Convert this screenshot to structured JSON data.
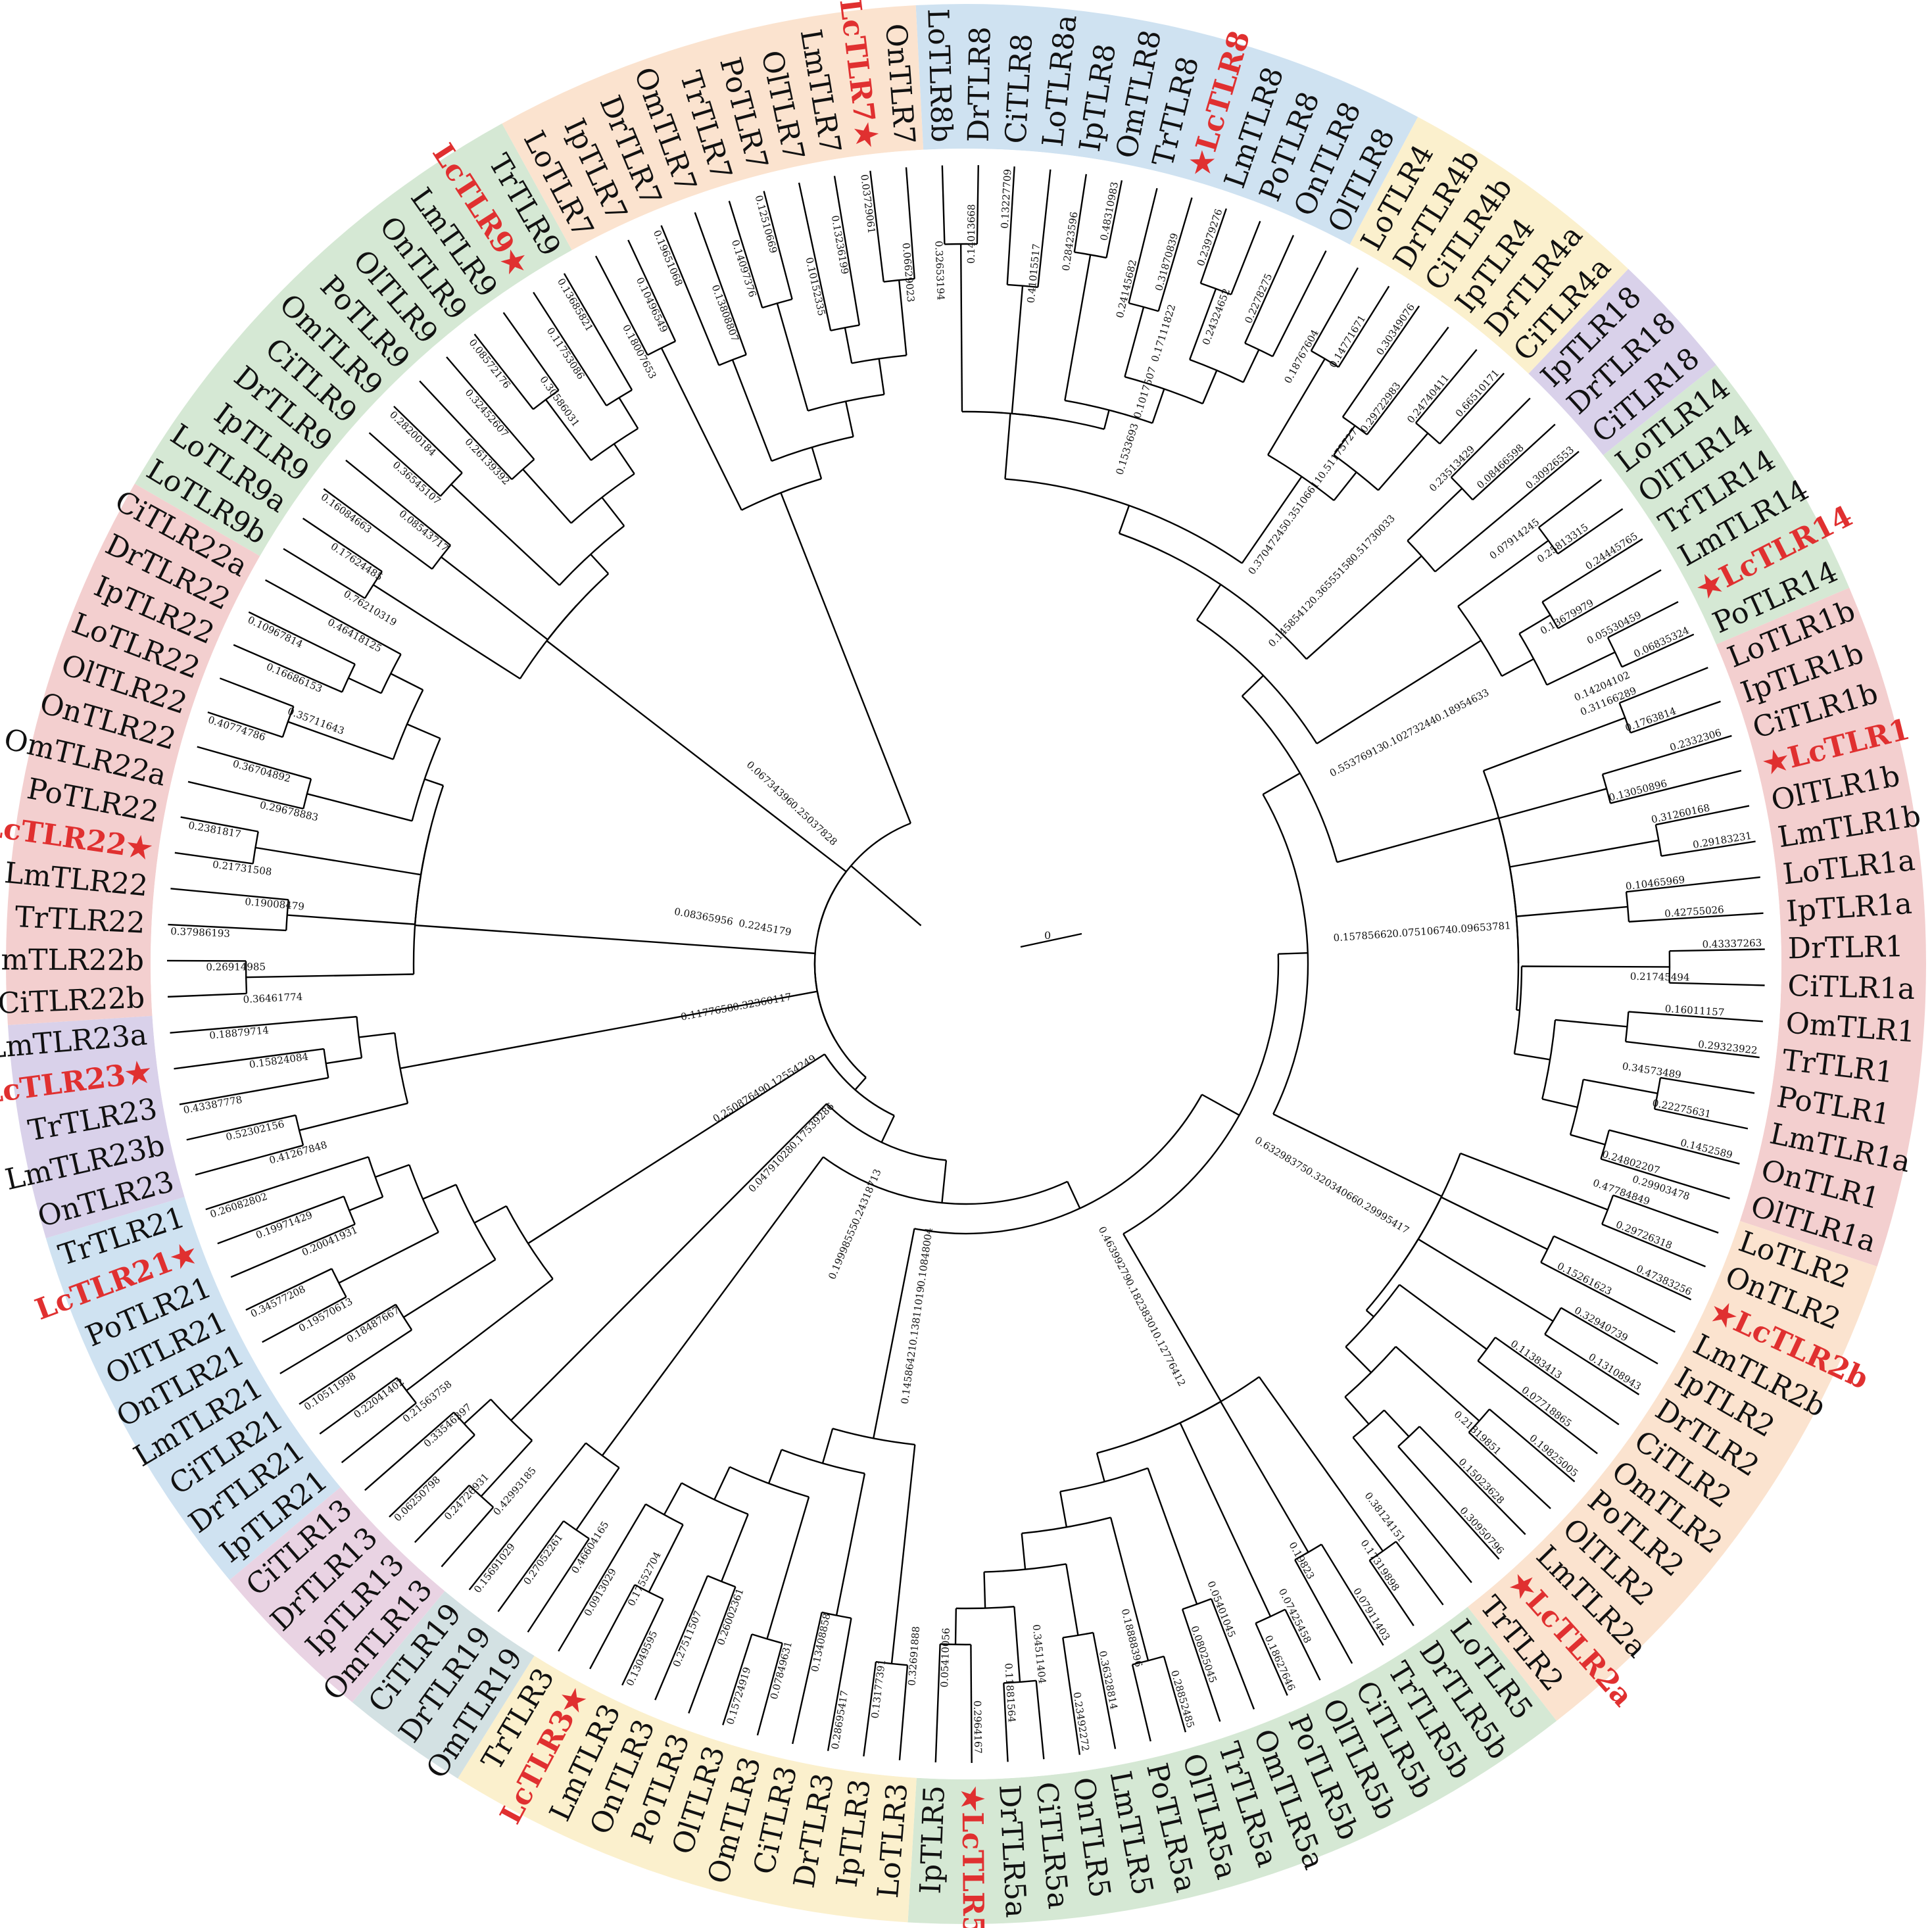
{
  "figure": {
    "root_label": "0",
    "star_symbol": "★",
    "highlight_color": "#e03030",
    "text_color": "#111111",
    "internal_branch_lengths": [
      "0.1533693",
      "0.37047245",
      "0.14585412",
      "0.55376913",
      "0.15785662",
      "0.63298375",
      "0.46399279",
      "0.10848004",
      "0.24318713",
      "0.17539286",
      "0.12554249",
      "0.32360117",
      "0.2245179",
      "0.25037828",
      "0.1017507",
      "0.35106611",
      "0.36555158",
      "0.10273244",
      "0.07510674",
      "0.32034066",
      "0.18238301",
      "0.13811019",
      "0.19998555",
      "0.04791028",
      "0.25087649",
      "0.1177658",
      "0.08365956",
      "0.06734396",
      "0.17111822",
      "0.51175727",
      "0.51730033",
      "0.18954633",
      "0.09653781",
      "0.29995417",
      "0.12776412",
      "0.14586421"
    ],
    "clades": [
      {
        "name": "TLR8",
        "color": "#cfe2f1",
        "leaves": [
          {
            "label": "LoTLR8b"
          },
          {
            "label": "DrTLR8"
          },
          {
            "label": "CiTLR8"
          },
          {
            "label": "LoTLR8a"
          },
          {
            "label": "IpTLR8"
          },
          {
            "label": "OmTLR8"
          },
          {
            "label": "TrTLR8"
          },
          {
            "label": "LcTLR8",
            "hl": true,
            "star": "before"
          },
          {
            "label": "LmTLR8"
          },
          {
            "label": "PoTLR8"
          },
          {
            "label": "OnTLR8"
          },
          {
            "label": "OlTLR8"
          }
        ],
        "branches": [
          "0.32653194",
          "0.14013668",
          "0.13227709",
          "0.41015517",
          "0.28423596",
          "0.48310983",
          "0.24145682",
          "0.31870839",
          "0.23979276",
          "0.24324652",
          "0.2278275"
        ]
      },
      {
        "name": "TLR4",
        "color": "#fbf0cd",
        "leaves": [
          {
            "label": "LoTLR4"
          },
          {
            "label": "DrTLR4b"
          },
          {
            "label": "CiTLR4b"
          },
          {
            "label": "IpTLR4"
          },
          {
            "label": "DrTLR4a"
          },
          {
            "label": "CiTLR4a"
          }
        ],
        "branches": [
          "0.18767604",
          "0.14771671",
          "0.30349076",
          "0.29722983",
          "0.24740411",
          "0.66510171"
        ]
      },
      {
        "name": "TLR18",
        "color": "#d9d1ea",
        "leaves": [
          {
            "label": "IpTLR18"
          },
          {
            "label": "DrTLR18"
          },
          {
            "label": "CiTLR18"
          }
        ],
        "branches": [
          "0.23513429",
          "0.08466598",
          "0.30926553"
        ]
      },
      {
        "name": "TLR14",
        "color": "#d5e8d4",
        "leaves": [
          {
            "label": "LoTLR14"
          },
          {
            "label": "OlTLR14"
          },
          {
            "label": "TrTLR14"
          },
          {
            "label": "LmTLR14"
          },
          {
            "label": "LcTLR14",
            "hl": true,
            "star": "before"
          },
          {
            "label": "PoTLR14"
          }
        ],
        "branches": [
          "0.07914245",
          "0.25813315",
          "0.24445765",
          "0.13679979",
          "0.05530459",
          "0.06835324",
          "0.14204102"
        ]
      },
      {
        "name": "TLR1",
        "color": "#f3cfcf",
        "leaves": [
          {
            "label": "LoTLR1b"
          },
          {
            "label": "IpTLR1b"
          },
          {
            "label": "CiTLR1b"
          },
          {
            "label": "LcTLR1",
            "hl": true,
            "star": "before"
          },
          {
            "label": "OlTLR1b"
          },
          {
            "label": "LmTLR1b"
          },
          {
            "label": "LoTLR1a"
          },
          {
            "label": "IpTLR1a"
          },
          {
            "label": "DrTLR1"
          },
          {
            "label": "CiTLR1a"
          },
          {
            "label": "OmTLR1"
          },
          {
            "label": "TrTLR1"
          },
          {
            "label": "PoTLR1"
          },
          {
            "label": "LmTLR1a"
          },
          {
            "label": "OnTLR1"
          },
          {
            "label": "OlTLR1a"
          }
        ],
        "branches": [
          "0.31166289",
          "0.1763814",
          "0.2332306",
          "0.13050896",
          "0.31260168",
          "0.29183231",
          "0.10465969",
          "0.42755026",
          "0.43337263",
          "0.21745494",
          "0.16011157",
          "0.29323922",
          "0.34573489",
          "0.22275631",
          "0.1452589",
          "0.24802207",
          "0.29903478"
        ]
      },
      {
        "name": "TLR2",
        "color": "#fbe3cf",
        "leaves": [
          {
            "label": "LoTLR2"
          },
          {
            "label": "OnTLR2"
          },
          {
            "label": "LcTLR2b",
            "hl": true,
            "star": "before"
          },
          {
            "label": "LmTLR2b"
          },
          {
            "label": "IpTLR2"
          },
          {
            "label": "DrTLR2"
          },
          {
            "label": "CiTLR2"
          },
          {
            "label": "OmTLR2"
          },
          {
            "label": "PoTLR2"
          },
          {
            "label": "OlTLR2"
          },
          {
            "label": "LmTLR2a"
          },
          {
            "label": "LcTLR2a",
            "hl": true,
            "star": "before"
          },
          {
            "label": "TrTLR2"
          }
        ],
        "branches": [
          "0.47784849",
          "0.29726318",
          "0.47383256",
          "0.15261623",
          "0.32940739",
          "0.13108943",
          "0.11383413",
          "0.07718865",
          "0.19825005",
          "0.21819851",
          "0.15023628",
          "0.30950796"
        ]
      },
      {
        "name": "TLR5",
        "color": "#d5e8d4",
        "leaves": [
          {
            "label": "LoTLR5"
          },
          {
            "label": "DrTLR5b"
          },
          {
            "label": "TrTLR5b"
          },
          {
            "label": "CiTLR5b"
          },
          {
            "label": "OlTLR5b"
          },
          {
            "label": "PoTLR5b"
          },
          {
            "label": "OmTLR5a"
          },
          {
            "label": "TrTLR5a"
          },
          {
            "label": "OlTLR5a"
          },
          {
            "label": "PoTLR5a"
          },
          {
            "label": "LmTLR5"
          },
          {
            "label": "OnTLR5"
          },
          {
            "label": "CiTLR5a"
          },
          {
            "label": "DrTLR5a"
          },
          {
            "label": "LcTLR5",
            "hl": true,
            "star": "before"
          },
          {
            "label": "IpTLR5"
          }
        ],
        "branches": [
          "0.38124151",
          "0.17319898",
          "0.07911403",
          "0.19823",
          "0.07425458",
          "0.18627646",
          "0.05401045",
          "0.08025045",
          "0.28852485",
          "0.18888396",
          "0.36328814",
          "0.23492272",
          "0.34511404",
          "0.11881564",
          "0.2964167",
          "0.05410056"
        ]
      },
      {
        "name": "TLR3",
        "color": "#fbf0cd",
        "leaves": [
          {
            "label": "LoTLR3"
          },
          {
            "label": "IpTLR3"
          },
          {
            "label": "DrTLR3"
          },
          {
            "label": "CiTLR3"
          },
          {
            "label": "OmTLR3"
          },
          {
            "label": "OlTLR3"
          },
          {
            "label": "PoTLR3"
          },
          {
            "label": "OnTLR3"
          },
          {
            "label": "LmTLR3"
          },
          {
            "label": "LcTLR3",
            "hl": true,
            "star": "after"
          },
          {
            "label": "TrTLR3"
          }
        ],
        "branches": [
          "0.32691888",
          "0.13177391",
          "0.28695417",
          "0.13408858",
          "0.07849631",
          "0.15724919",
          "0.26002361",
          "0.27511507",
          "0.13049595",
          "0.17552704",
          "0.0913029"
        ]
      },
      {
        "name": "TLR19",
        "color": "#d3e1e3",
        "leaves": [
          {
            "label": "OmTLR19"
          },
          {
            "label": "DrTLR19"
          },
          {
            "label": "CiTLR19"
          }
        ],
        "branches": [
          "0.46604165",
          "0.27052261",
          "0.15691029"
        ]
      },
      {
        "name": "TLR13",
        "color": "#e9d3e3",
        "leaves": [
          {
            "label": "OmTLR13"
          },
          {
            "label": "IpTLR13"
          },
          {
            "label": "DrTLR13"
          },
          {
            "label": "CiTLR13"
          }
        ],
        "branches": [
          "0.42993185",
          "0.24726931",
          "0.06250798",
          "0.33546397"
        ]
      },
      {
        "name": "TLR21",
        "color": "#cfe2f1",
        "leaves": [
          {
            "label": "IpTLR21"
          },
          {
            "label": "DrTLR21"
          },
          {
            "label": "CiTLR21"
          },
          {
            "label": "LmTLR21"
          },
          {
            "label": "OnTLR21"
          },
          {
            "label": "OlTLR21"
          },
          {
            "label": "PoTLR21"
          },
          {
            "label": "LcTLR21",
            "hl": true,
            "star": "after"
          },
          {
            "label": "TrTLR21"
          }
        ],
        "branches": [
          "0.21563758",
          "0.22041402",
          "0.10511998",
          "0.18487667",
          "0.19570613",
          "0.34577208",
          "0.20041931",
          "0.19971429",
          "0.26082802"
        ]
      },
      {
        "name": "TLR23",
        "color": "#d9d1ea",
        "leaves": [
          {
            "label": "OnTLR23"
          },
          {
            "label": "LmTLR23b"
          },
          {
            "label": "TrTLR23"
          },
          {
            "label": "LcTLR23",
            "hl": true,
            "star": "after"
          },
          {
            "label": "LmTLR23a"
          }
        ],
        "branches": [
          "0.41267848",
          "0.52302156",
          "0.43387778",
          "0.15824084",
          "0.18879714"
        ]
      },
      {
        "name": "TLR22",
        "color": "#f3cfcf",
        "leaves": [
          {
            "label": "CiTLR22b"
          },
          {
            "label": "OmTLR22b"
          },
          {
            "label": "TrTLR22"
          },
          {
            "label": "LmTLR22"
          },
          {
            "label": "LcTLR22",
            "hl": true,
            "star": "after"
          },
          {
            "label": "PoTLR22"
          },
          {
            "label": "OmTLR22a"
          },
          {
            "label": "OnTLR22"
          },
          {
            "label": "OlTLR22"
          },
          {
            "label": "LoTLR22"
          },
          {
            "label": "IpTLR22"
          },
          {
            "label": "DrTLR22"
          },
          {
            "label": "CiTLR22a"
          }
        ],
        "branches": [
          "0.36461774",
          "0.26914985",
          "0.37986193",
          "0.19008479",
          "0.21731508",
          "0.2381817",
          "0.29678883",
          "0.36704892",
          "0.40774786",
          "0.35711643",
          "0.16686153",
          "0.10967814",
          "0.46418125"
        ]
      },
      {
        "name": "TLR9",
        "color": "#d5e8d4",
        "leaves": [
          {
            "label": "LoTLR9b"
          },
          {
            "label": "LoTLR9a"
          },
          {
            "label": "IpTLR9"
          },
          {
            "label": "DrTLR9"
          },
          {
            "label": "CiTLR9"
          },
          {
            "label": "OmTLR9"
          },
          {
            "label": "PoTLR9"
          },
          {
            "label": "OlTLR9"
          },
          {
            "label": "OnTLR9"
          },
          {
            "label": "LmTLR9"
          },
          {
            "label": "LcTLR9",
            "hl": true,
            "star": "after"
          },
          {
            "label": "TrTLR9"
          }
        ],
        "branches": [
          "0.76210319",
          "0.17624485",
          "0.16084663",
          "0.08543717",
          "0.36545107",
          "0.28200184",
          "0.26139392",
          "0.32452607",
          "0.08572176",
          "0.30586031",
          "0.11753086",
          "0.13685821"
        ]
      },
      {
        "name": "TLR7",
        "color": "#fbe3cf",
        "leaves": [
          {
            "label": "LoTLR7"
          },
          {
            "label": "IpTLR7"
          },
          {
            "label": "DrTLR7"
          },
          {
            "label": "OmTLR7"
          },
          {
            "label": "TrTLR7"
          },
          {
            "label": "PoTLR7"
          },
          {
            "label": "OlTLR7"
          },
          {
            "label": "LmTLR7"
          },
          {
            "label": "LcTLR7",
            "hl": true,
            "star": "after"
          },
          {
            "label": "OnTLR7"
          }
        ],
        "branches": [
          "0.18007653",
          "0.10496549",
          "0.19651068",
          "0.13808807",
          "0.14097376",
          "0.12510669",
          "0.10152335",
          "0.13236199",
          "0.03729061",
          "0.06629023"
        ]
      }
    ]
  }
}
